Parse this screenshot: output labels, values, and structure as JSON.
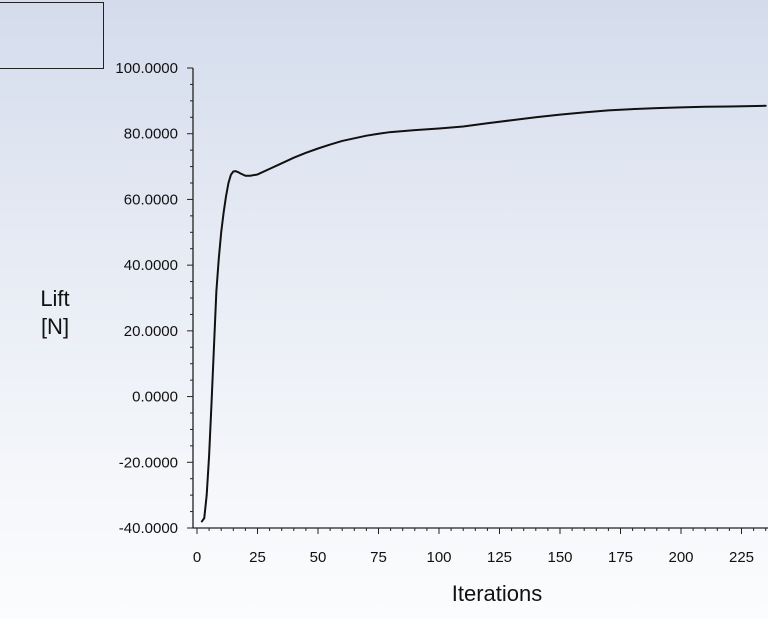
{
  "chart_data": {
    "type": "line",
    "xlabel": "Iterations",
    "ylabel": [
      "Lift",
      "[N]"
    ],
    "xlim": [
      0,
      235
    ],
    "ylim": [
      -40,
      100
    ],
    "xticks": [
      0,
      25,
      50,
      75,
      100,
      125,
      150,
      175,
      200,
      225
    ],
    "xtick_labels": [
      "0",
      "25",
      "50",
      "75",
      "100",
      "125",
      "150",
      "175",
      "200",
      "225"
    ],
    "yticks": [
      100,
      80,
      60,
      40,
      20,
      0,
      -20,
      -40
    ],
    "ytick_labels": [
      "100.0000",
      "80.0000",
      "60.0000",
      "40.0000",
      "20.0000",
      "0.0000",
      "-20.0000",
      "-40.0000"
    ],
    "grid": false,
    "series": [
      {
        "x": [
          2,
          3,
          4,
          5,
          6,
          7,
          8,
          9,
          10,
          11,
          12,
          13,
          14,
          15,
          16,
          17,
          18,
          20,
          22,
          25,
          30,
          35,
          40,
          45,
          50,
          55,
          60,
          65,
          70,
          75,
          80,
          90,
          100,
          110,
          120,
          130,
          140,
          150,
          160,
          170,
          180,
          190,
          200,
          210,
          220,
          235
        ],
        "values": [
          -38,
          -37,
          -30,
          -18,
          -2,
          15,
          32,
          42,
          50,
          56,
          61,
          65,
          67.5,
          68.5,
          68.6,
          68.3,
          67.9,
          67.2,
          67.2,
          67.6,
          69.3,
          71,
          72.7,
          74.2,
          75.5,
          76.7,
          77.8,
          78.6,
          79.4,
          80,
          80.5,
          81.1,
          81.6,
          82.2,
          83.2,
          84.1,
          85,
          85.8,
          86.5,
          87.1,
          87.5,
          87.8,
          88,
          88.2,
          88.3,
          88.5
        ],
        "color": "#111111"
      }
    ]
  }
}
